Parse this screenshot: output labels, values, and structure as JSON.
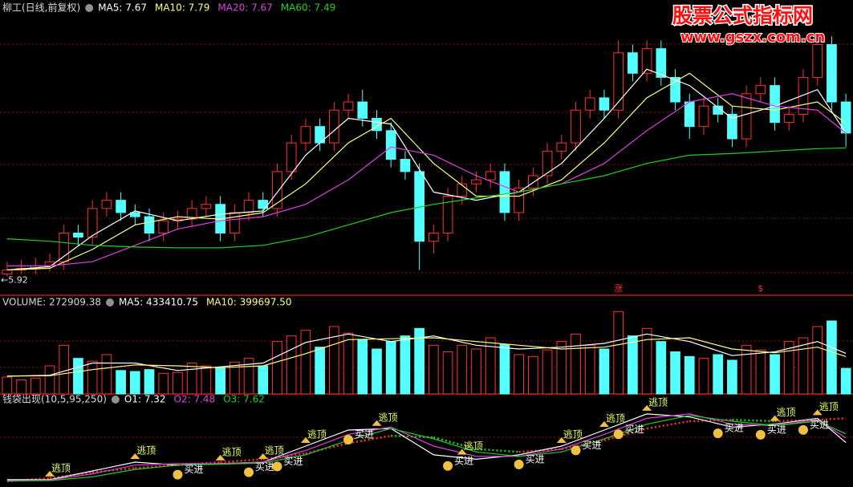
{
  "watermark": {
    "title": "股票公式指标网",
    "url": "www.gszx.com.cn"
  },
  "chart_data": [
    {
      "type": "candlestick",
      "title": "柳工(日线,前复权)",
      "up_color": "#ff3030",
      "down_color": "#54ffff",
      "open": [
        5.95,
        6.0,
        6.02,
        6.05,
        6.1,
        6.45,
        6.4,
        6.75,
        6.85,
        6.7,
        6.65,
        6.45,
        6.6,
        6.62,
        6.75,
        6.8,
        6.45,
        6.7,
        6.85,
        6.75,
        7.2,
        7.55,
        7.75,
        7.55,
        7.95,
        8.05,
        7.85,
        7.7,
        7.35,
        7.2,
        6.35,
        6.45,
        6.9,
        7.05,
        7.1,
        7.2,
        6.7,
        7.0,
        7.15,
        7.45,
        7.55,
        7.95,
        8.1,
        7.95,
        8.65,
        8.4,
        8.7,
        8.35,
        8.05,
        7.75,
        8.0,
        7.9,
        7.6,
        8.15,
        8.25,
        7.8,
        7.9,
        8.35,
        8.75,
        8.05
      ],
      "high": [
        6.1,
        6.12,
        6.15,
        6.2,
        6.55,
        6.55,
        6.85,
        6.95,
        6.95,
        6.8,
        6.75,
        6.7,
        6.72,
        6.85,
        6.9,
        6.9,
        6.8,
        6.95,
        6.95,
        7.3,
        7.65,
        7.85,
        7.85,
        8.05,
        8.15,
        8.2,
        7.95,
        7.8,
        7.45,
        7.3,
        6.55,
        7.0,
        7.15,
        7.2,
        7.3,
        7.3,
        7.1,
        7.25,
        7.55,
        7.65,
        8.05,
        8.2,
        8.2,
        8.8,
        8.75,
        8.8,
        8.8,
        8.45,
        8.15,
        8.1,
        8.1,
        8.0,
        8.25,
        8.35,
        8.35,
        8.0,
        8.45,
        8.85,
        8.85,
        8.15
      ],
      "low": [
        5.92,
        5.95,
        5.95,
        5.98,
        6.0,
        6.3,
        6.3,
        6.65,
        6.6,
        6.55,
        6.35,
        6.35,
        6.5,
        6.52,
        6.65,
        6.35,
        6.35,
        6.6,
        6.65,
        6.65,
        7.1,
        7.45,
        7.45,
        7.45,
        7.85,
        7.75,
        7.6,
        7.25,
        7.1,
        6.0,
        6.2,
        6.35,
        6.8,
        6.95,
        7.0,
        6.6,
        6.6,
        6.9,
        7.05,
        7.35,
        7.45,
        7.85,
        7.85,
        7.85,
        8.3,
        8.3,
        8.25,
        7.95,
        7.6,
        7.65,
        7.8,
        7.5,
        7.5,
        8.05,
        7.7,
        7.7,
        7.8,
        8.25,
        7.95,
        7.5
      ],
      "close": [
        6.0,
        6.02,
        6.05,
        6.1,
        6.45,
        6.4,
        6.75,
        6.85,
        6.7,
        6.65,
        6.45,
        6.6,
        6.62,
        6.75,
        6.8,
        6.45,
        6.7,
        6.85,
        6.75,
        7.2,
        7.55,
        7.75,
        7.55,
        7.95,
        8.05,
        7.85,
        7.7,
        7.35,
        7.2,
        6.35,
        6.45,
        6.9,
        7.05,
        7.1,
        7.2,
        6.7,
        7.0,
        7.15,
        7.45,
        7.55,
        7.95,
        8.1,
        7.95,
        8.65,
        8.4,
        8.7,
        8.35,
        8.05,
        7.75,
        8.0,
        7.9,
        7.6,
        8.15,
        8.25,
        7.8,
        7.9,
        8.35,
        8.75,
        8.05,
        7.67
      ],
      "ylim": [
        5.75,
        9.0
      ],
      "ma_x": [
        0,
        3,
        6,
        9,
        12,
        15,
        18,
        21,
        24,
        27,
        30,
        33,
        36,
        39,
        42,
        45,
        48,
        51,
        54,
        57,
        59
      ],
      "series": [
        {
          "name": "MA5: 7.67",
          "color": "#ffffff",
          "values": [
            6.0,
            6.04,
            6.42,
            6.72,
            6.6,
            6.68,
            6.72,
            7.4,
            7.85,
            7.78,
            6.95,
            6.85,
            6.95,
            7.3,
            7.85,
            8.45,
            8.25,
            7.85,
            8.0,
            8.2,
            7.67
          ]
        },
        {
          "name": "MA10: 7.79",
          "color": "#ffff80",
          "values": [
            6.0,
            6.02,
            6.25,
            6.55,
            6.65,
            6.62,
            6.7,
            7.05,
            7.55,
            7.85,
            7.3,
            6.9,
            6.9,
            7.1,
            7.55,
            8.1,
            8.4,
            8.0,
            7.95,
            8.05,
            7.79
          ]
        },
        {
          "name": "MA20: 7.67",
          "color": "#e040e0",
          "values": [
            6.05,
            6.05,
            6.1,
            6.3,
            6.5,
            6.6,
            6.65,
            6.8,
            7.1,
            7.5,
            7.4,
            7.15,
            6.95,
            7.05,
            7.3,
            7.7,
            8.05,
            8.15,
            8.0,
            7.95,
            7.67
          ]
        },
        {
          "name": "MA60: 7.49",
          "color": "#20d020",
          "values": [
            6.38,
            6.35,
            6.3,
            6.28,
            6.27,
            6.27,
            6.3,
            6.4,
            6.55,
            6.7,
            6.8,
            6.88,
            6.95,
            7.05,
            7.15,
            7.3,
            7.4,
            7.42,
            7.45,
            7.48,
            7.49
          ]
        }
      ],
      "low_marker": {
        "value": 5.92,
        "label": "←5.92"
      },
      "flags": [
        {
          "x": 43,
          "label": "涨"
        },
        {
          "x": 53,
          "label": "$"
        }
      ]
    },
    {
      "type": "bar",
      "title": "VOLUME: 272909.38",
      "up_color": "#ff3030",
      "down_color": "#54ffff",
      "values": [
        180000,
        150000,
        170000,
        300000,
        520000,
        380000,
        350000,
        420000,
        250000,
        240000,
        260000,
        220000,
        230000,
        330000,
        300000,
        280000,
        340000,
        380000,
        300000,
        560000,
        620000,
        680000,
        500000,
        720000,
        650000,
        580000,
        480000,
        560000,
        620000,
        700000,
        520000,
        450000,
        520000,
        480000,
        600000,
        530000,
        420000,
        400000,
        470000,
        560000,
        640000,
        520000,
        480000,
        880000,
        620000,
        700000,
        560000,
        450000,
        400000,
        380000,
        420000,
        360000,
        520000,
        470000,
        420000,
        560000,
        600000,
        720000,
        780000,
        272909.38
      ],
      "ylim": [
        0,
        900000
      ],
      "ma_x": [
        0,
        3,
        6,
        9,
        12,
        15,
        18,
        21,
        24,
        27,
        30,
        33,
        36,
        39,
        42,
        45,
        48,
        51,
        54,
        57,
        59
      ],
      "series": [
        {
          "name": "MA5: 433410.75",
          "color": "#ffffff",
          "values": [
            190000,
            200000,
            330000,
            330000,
            250000,
            290000,
            330000,
            550000,
            640000,
            560000,
            620000,
            520000,
            480000,
            500000,
            540000,
            640000,
            560000,
            410000,
            450000,
            560000,
            433410.75
          ]
        },
        {
          "name": "MA10: 399697.50",
          "color": "#ffff80",
          "values": [
            190000,
            195000,
            260000,
            310000,
            300000,
            280000,
            300000,
            430000,
            580000,
            590000,
            600000,
            560000,
            520000,
            480000,
            500000,
            580000,
            600000,
            480000,
            440000,
            500000,
            399697.5
          ]
        }
      ]
    },
    {
      "type": "line",
      "title": "钱袋出现(10,5,95,250)",
      "ylim": [
        5.8,
        8.6
      ],
      "x": [
        0,
        3,
        6,
        9,
        12,
        15,
        18,
        21,
        24,
        27,
        30,
        33,
        36,
        39,
        42,
        45,
        48,
        51,
        54,
        57,
        59
      ],
      "series": [
        {
          "name": "O1: 7.32",
          "color": "#ffffff",
          "values": [
            6.05,
            6.05,
            6.35,
            6.65,
            6.55,
            6.6,
            6.65,
            7.2,
            7.75,
            7.8,
            6.9,
            6.75,
            6.9,
            7.2,
            7.75,
            8.3,
            8.2,
            7.85,
            7.95,
            8.15,
            7.32
          ]
        },
        {
          "name": "O2: 7.48",
          "color": "#e040e0",
          "values": [
            6.02,
            6.04,
            6.25,
            6.55,
            6.6,
            6.6,
            6.65,
            7.05,
            7.6,
            7.85,
            7.2,
            6.85,
            6.85,
            7.1,
            7.6,
            8.15,
            8.3,
            7.95,
            7.9,
            8.1,
            7.48
          ]
        },
        {
          "name": "O3: 7.62",
          "color": "#20d020",
          "values": [
            6.0,
            6.02,
            6.15,
            6.4,
            6.55,
            6.58,
            6.62,
            6.9,
            7.4,
            7.8,
            7.45,
            7.0,
            6.85,
            7.0,
            7.45,
            7.95,
            8.25,
            8.05,
            7.9,
            8.05,
            7.62
          ]
        }
      ],
      "trail": {
        "values": [
          6.0,
          6.1,
          6.3,
          6.45,
          6.55,
          6.65,
          6.75,
          6.95,
          7.3,
          7.55,
          7.5,
          7.1,
          7.0,
          7.1,
          7.4,
          7.8,
          8.05,
          8.1,
          8.05,
          8.1,
          8.15
        ]
      },
      "tops": [
        {
          "x": 3,
          "label": "逃顶"
        },
        {
          "x": 9,
          "label": "逃顶"
        },
        {
          "x": 15,
          "label": "逃顶"
        },
        {
          "x": 18,
          "label": "逃顶"
        },
        {
          "x": 21,
          "label": "逃顶"
        },
        {
          "x": 26,
          "label": "逃顶"
        },
        {
          "x": 32,
          "label": "逃顶"
        },
        {
          "x": 39,
          "label": "逃顶"
        },
        {
          "x": 42,
          "label": "逃顶"
        },
        {
          "x": 45,
          "label": "逃顶"
        },
        {
          "x": 54,
          "label": "逃顶"
        },
        {
          "x": 57,
          "label": "逃顶"
        }
      ],
      "buys": [
        {
          "x": 12,
          "label": "买进"
        },
        {
          "x": 17,
          "label": "买进"
        },
        {
          "x": 19,
          "label": "买进"
        },
        {
          "x": 24,
          "label": "买进"
        },
        {
          "x": 31,
          "label": "买进"
        },
        {
          "x": 36,
          "label": "买进"
        },
        {
          "x": 40,
          "label": "买进"
        },
        {
          "x": 43,
          "label": "买进"
        },
        {
          "x": 50,
          "label": "买进"
        },
        {
          "x": 53,
          "label": "买进"
        },
        {
          "x": 56,
          "label": "买进"
        }
      ]
    }
  ]
}
